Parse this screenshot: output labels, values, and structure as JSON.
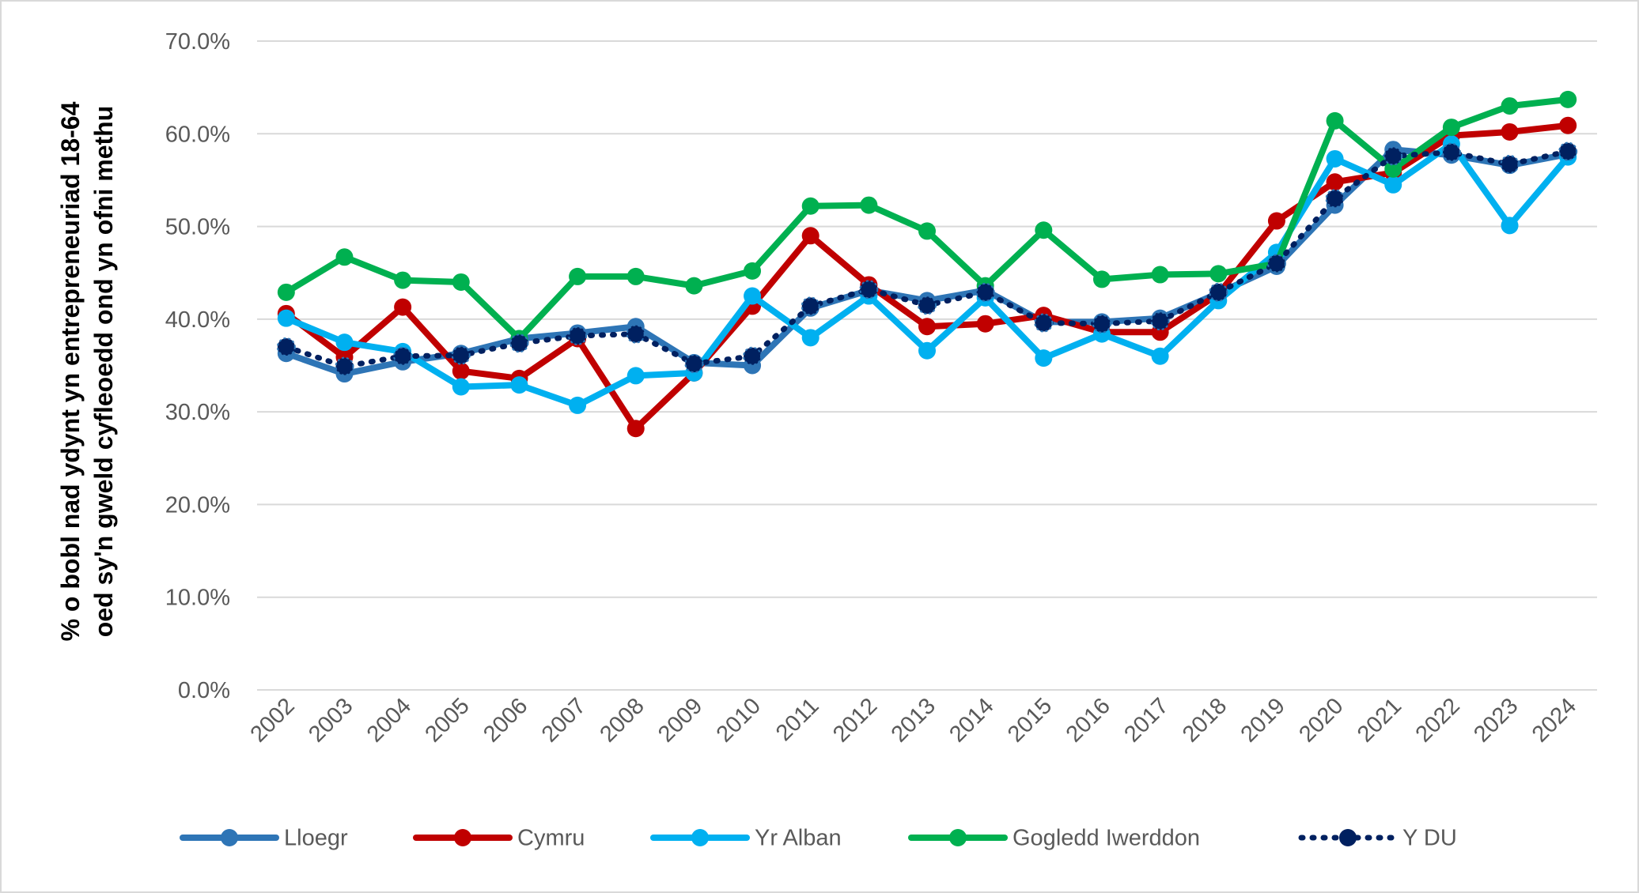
{
  "chart_data": {
    "type": "line",
    "ylabel": [
      "% o bobl nad ydynt yn entrepreneuriad 18-64",
      "oed sy'n gweld cyfleoedd ond yn ofni methu"
    ],
    "categories": [
      "2002",
      "2003",
      "2004",
      "2005",
      "2006",
      "2007",
      "2008",
      "2009",
      "2010",
      "2011",
      "2012",
      "2013",
      "2014",
      "2015",
      "2016",
      "2017",
      "2018",
      "2019",
      "2020",
      "2021",
      "2022",
      "2023",
      "2024"
    ],
    "ylim": [
      0,
      70
    ],
    "yticks": [
      {
        "value": 0,
        "label": "0.0%"
      },
      {
        "value": 10,
        "label": "10.0%"
      },
      {
        "value": 20,
        "label": "20.0%"
      },
      {
        "value": 30,
        "label": "30.0%"
      },
      {
        "value": 40,
        "label": "40.0%"
      },
      {
        "value": 50,
        "label": "50.0%"
      },
      {
        "value": 60,
        "label": "60.0%"
      },
      {
        "value": 70,
        "label": "70.0%"
      }
    ],
    "grid": true,
    "legend": "bottom",
    "series": [
      {
        "name": "Lloegr",
        "color": "#2E75B6",
        "values": [
          36.3,
          34.1,
          35.4,
          36.3,
          37.9,
          38.5,
          39.2,
          35.3,
          35.0,
          41.2,
          43.1,
          42.0,
          43.1,
          39.7,
          39.7,
          40.1,
          42.8,
          45.7,
          52.3,
          58.3,
          57.7,
          56.6,
          57.8
        ]
      },
      {
        "name": "Cymru",
        "color": "#C00000",
        "values": [
          40.6,
          35.9,
          41.3,
          34.4,
          33.6,
          37.9,
          28.2,
          34.2,
          41.4,
          49.0,
          43.7,
          39.2,
          39.5,
          40.4,
          38.6,
          38.6,
          42.7,
          50.6,
          54.8,
          55.8,
          59.8,
          60.2,
          60.9
        ]
      },
      {
        "name": "Yr Alban",
        "color": "#00B0F0",
        "values": [
          40.1,
          37.5,
          36.5,
          32.7,
          32.9,
          30.7,
          33.9,
          34.2,
          42.5,
          38.0,
          42.5,
          36.6,
          42.3,
          35.8,
          38.4,
          36.0,
          42.0,
          47.2,
          57.3,
          54.5,
          58.9,
          50.1,
          57.5
        ]
      },
      {
        "name": "Gogledd Iwerddon",
        "color": "#00B050",
        "values": [
          42.9,
          46.7,
          44.2,
          44.0,
          37.9,
          44.6,
          44.6,
          43.6,
          45.2,
          52.2,
          52.3,
          49.5,
          43.6,
          49.6,
          44.3,
          44.8,
          44.9,
          46.0,
          61.4,
          56.2,
          60.7,
          63.0,
          63.7
        ]
      },
      {
        "name": "Y DU",
        "color": "#002060",
        "dashed": true,
        "values": [
          37.0,
          34.9,
          36.0,
          36.1,
          37.4,
          38.2,
          38.4,
          35.2,
          36.0,
          41.4,
          43.2,
          41.5,
          42.9,
          39.6,
          39.5,
          39.8,
          42.9,
          46.0,
          53.0,
          57.6,
          58.0,
          56.7,
          58.1
        ]
      }
    ]
  }
}
